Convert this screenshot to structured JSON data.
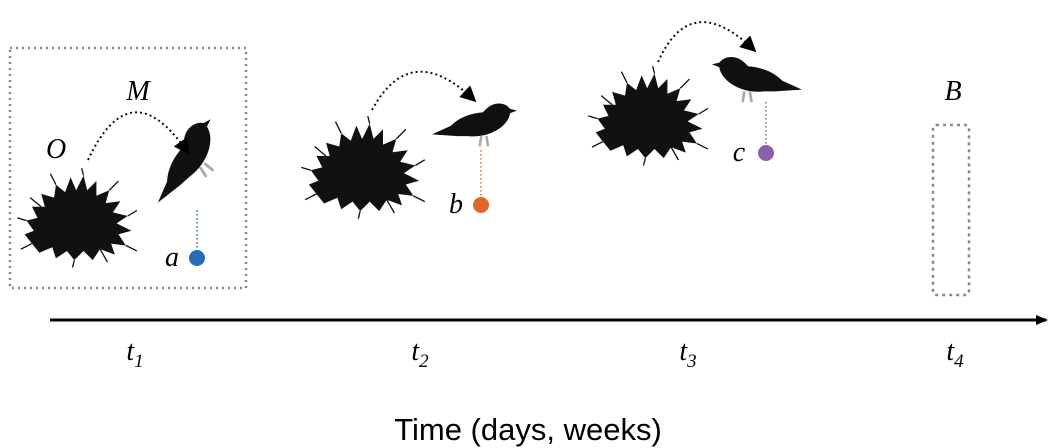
{
  "labels": {
    "origin": "O",
    "movement": "M",
    "window": "B"
  },
  "points": [
    {
      "label": "a"
    },
    {
      "label": "b"
    },
    {
      "label": "c"
    }
  ],
  "time_ticks": [
    {
      "base": "t",
      "sub": "1"
    },
    {
      "base": "t",
      "sub": "2"
    },
    {
      "base": "t",
      "sub": "3"
    },
    {
      "base": "t",
      "sub": "4"
    }
  ],
  "axis_title": "Time (days, weeks)"
}
